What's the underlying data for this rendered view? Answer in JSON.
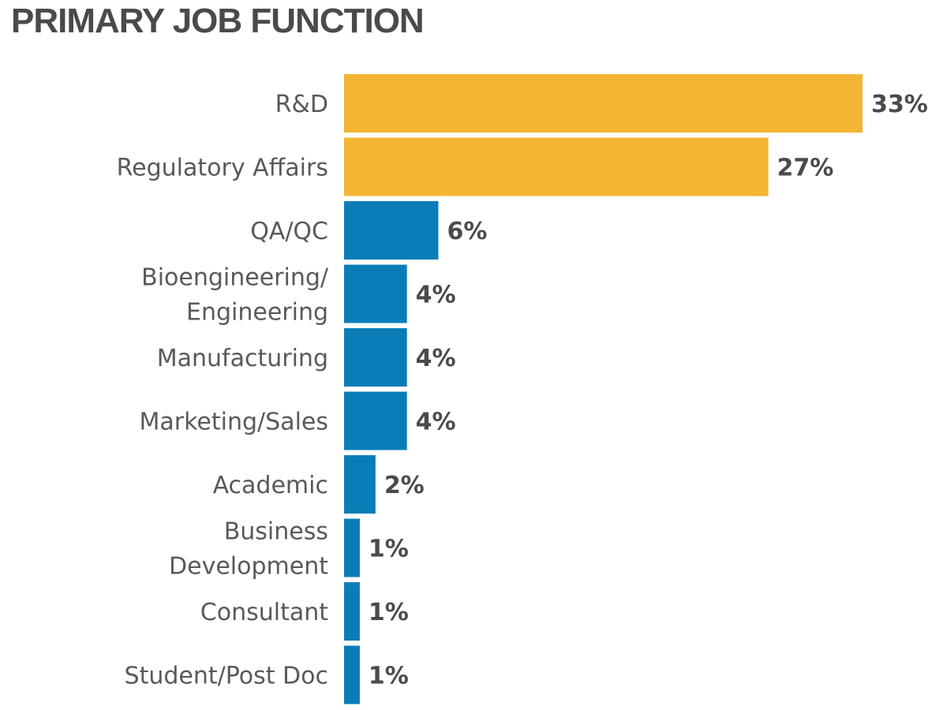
{
  "chart_data": {
    "type": "bar",
    "orientation": "horizontal",
    "title": "PRIMARY JOB FUNCTION",
    "categories": [
      [
        "R&D"
      ],
      [
        "Regulatory Affairs"
      ],
      [
        "QA/QC"
      ],
      [
        "Bioengineering/",
        "Engineering"
      ],
      [
        "Manufacturing"
      ],
      [
        "Marketing/Sales"
      ],
      [
        "Academic"
      ],
      [
        "Business",
        "Development"
      ],
      [
        "Consultant"
      ],
      [
        "Student/Post Doc"
      ]
    ],
    "values": [
      33,
      27,
      6,
      4,
      4,
      4,
      2,
      1,
      1,
      1
    ],
    "value_labels": [
      "33%",
      "27%",
      "6%",
      "4%",
      "4%",
      "4%",
      "2%",
      "1%",
      "1%",
      "1%"
    ],
    "bar_colors": [
      "#f4b534",
      "#f4b534",
      "#0a7db8",
      "#0a7db8",
      "#0a7db8",
      "#0a7db8",
      "#0a7db8",
      "#0a7db8",
      "#0a7db8",
      "#0a7db8"
    ],
    "xlim": [
      0,
      33
    ],
    "grid": false,
    "legend": "none"
  }
}
